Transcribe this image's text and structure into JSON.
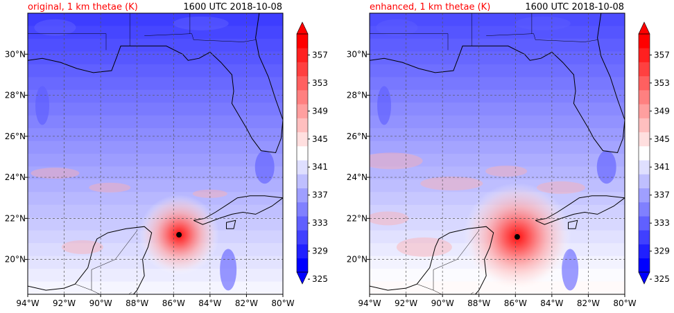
{
  "chart_data": [
    {
      "type": "heatmap",
      "title": "original, 1 km thetae (K)",
      "subtitle": "1600 UTC 2018-10-08",
      "title_color": "#ff0000",
      "x_ticks": [
        "94°W",
        "92°W",
        "90°W",
        "88°W",
        "86°W",
        "84°W",
        "82°W",
        "80°W"
      ],
      "y_ticks": [
        "20°N",
        "22°N",
        "24°N",
        "26°N",
        "28°N",
        "30°N"
      ],
      "xlim": [
        -94,
        -80
      ],
      "ylim": [
        18.3,
        32
      ],
      "grid": true,
      "colorbar": {
        "ticks": [
          325,
          329,
          333,
          337,
          341,
          345,
          349,
          353,
          357
        ],
        "levels": [
          325,
          327,
          329,
          331,
          333,
          335,
          337,
          339,
          341,
          343,
          345,
          347,
          349,
          351,
          353,
          355,
          357,
          359
        ],
        "colormap": "bwr"
      },
      "storm_center": {
        "lon": -85.7,
        "lat": 21.2
      }
    },
    {
      "type": "heatmap",
      "title": "enhanced, 1 km thetae (K)",
      "subtitle": "1600 UTC 2018-10-08",
      "title_color": "#ff0000",
      "x_ticks": [
        "94°W",
        "92°W",
        "90°W",
        "88°W",
        "86°W",
        "84°W",
        "82°W",
        "80°W"
      ],
      "y_ticks": [
        "20°N",
        "22°N",
        "24°N",
        "26°N",
        "28°N",
        "30°N"
      ],
      "xlim": [
        -94,
        -80
      ],
      "ylim": [
        18.3,
        32
      ],
      "grid": true,
      "colorbar": {
        "ticks": [
          325,
          329,
          333,
          337,
          341,
          345,
          349,
          353,
          357
        ],
        "levels": [
          325,
          327,
          329,
          331,
          333,
          335,
          337,
          339,
          341,
          343,
          345,
          347,
          349,
          351,
          353,
          355,
          357,
          359
        ],
        "colormap": "bwr"
      },
      "storm_center": {
        "lon": -85.9,
        "lat": 21.1
      }
    }
  ]
}
